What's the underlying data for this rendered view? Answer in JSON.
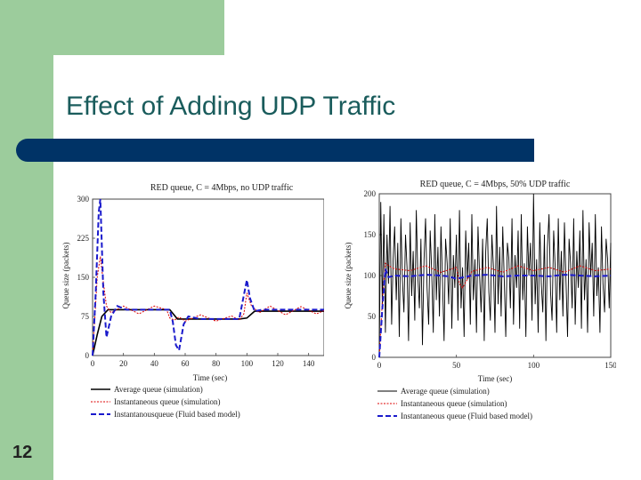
{
  "slide": {
    "title": "Effect of Adding UDP Traffic",
    "number": "12"
  },
  "colors": {
    "green": "#9ccc9c",
    "title_bar": "#003366",
    "title_text": "#1a5c5c",
    "average": "#000000",
    "instantaneous": "#dd0000",
    "fluid": "#1a1acc"
  },
  "chart_data": [
    {
      "type": "line",
      "title": "RED queue, C = 4Mbps, no UDP traffic",
      "xlabel": "Time (sec)",
      "ylabel": "Queue size (packets)",
      "xlim": [
        0,
        150
      ],
      "ylim": [
        0,
        300
      ],
      "xticks": [
        "0",
        "20",
        "40",
        "60",
        "80",
        "100",
        "120",
        "140"
      ],
      "yticks": [
        "0",
        "75",
        "150",
        "225",
        "300"
      ],
      "grid": false,
      "legend_position": "bottom",
      "series": [
        {
          "name": "Average queue (simulation)",
          "style": "solid",
          "x": [
            0,
            3,
            6,
            10,
            50,
            55,
            95,
            100,
            105,
            150
          ],
          "y": [
            0,
            40,
            75,
            88,
            88,
            70,
            70,
            72,
            85,
            85
          ]
        },
        {
          "name": "Instantaneous queue  (simulation)",
          "style": "dotted",
          "x": [
            0,
            3,
            5,
            7,
            9,
            12,
            20,
            30,
            40,
            48,
            50,
            53,
            56,
            60,
            70,
            80,
            90,
            95,
            98,
            100,
            103,
            108,
            115,
            125,
            135,
            145,
            150
          ],
          "y": [
            0,
            150,
            190,
            140,
            95,
            82,
            95,
            80,
            95,
            88,
            72,
            68,
            74,
            66,
            78,
            66,
            76,
            68,
            80,
            120,
            95,
            82,
            95,
            78,
            94,
            80,
            86
          ]
        },
        {
          "name": "Instantanousqueue (Fluid based model)",
          "style": "dashed",
          "x": [
            0,
            2,
            4,
            5,
            7,
            9,
            12,
            16,
            22,
            30,
            50,
            52,
            54,
            56,
            59,
            62,
            70,
            95,
            97,
            100,
            102,
            105,
            110,
            150
          ],
          "y": [
            0,
            120,
            275,
            300,
            120,
            35,
            75,
            95,
            88,
            88,
            88,
            65,
            20,
            10,
            60,
            75,
            70,
            70,
            100,
            145,
            110,
            85,
            88,
            88
          ]
        }
      ]
    },
    {
      "type": "line",
      "title": "RED queue, C = 4Mbps, 50% UDP traffic",
      "xlabel": "Time (sec)",
      "ylabel": "Queue size (packets)",
      "xlim": [
        0,
        150
      ],
      "ylim": [
        0,
        200
      ],
      "xticks": [
        "0",
        "50",
        "100",
        "150"
      ],
      "yticks": [
        "0",
        "50",
        "100",
        "150",
        "200"
      ],
      "grid": false,
      "legend_position": "bottom",
      "series": [
        {
          "name": "Average queue (simulation)",
          "style": "solid",
          "x": [
            0,
            1,
            2,
            3,
            4,
            5,
            6,
            7,
            8,
            9,
            10,
            11,
            12,
            13,
            14,
            15,
            16,
            17,
            18,
            19,
            20,
            21,
            22,
            23,
            24,
            25,
            26,
            27,
            28,
            29,
            30,
            31,
            32,
            33,
            34,
            35,
            36,
            37,
            38,
            39,
            40,
            41,
            42,
            43,
            44,
            45,
            46,
            47,
            48,
            49,
            50,
            51,
            52,
            53,
            54,
            55,
            56,
            57,
            58,
            59,
            60,
            61,
            62,
            63,
            64,
            65,
            66,
            67,
            68,
            69,
            70,
            71,
            72,
            73,
            74,
            75,
            76,
            77,
            78,
            79,
            80,
            81,
            82,
            83,
            84,
            85,
            86,
            87,
            88,
            89,
            90,
            91,
            92,
            93,
            94,
            95,
            96,
            97,
            98,
            99,
            100,
            101,
            102,
            103,
            104,
            105,
            106,
            107,
            108,
            109,
            110,
            111,
            112,
            113,
            114,
            115,
            116,
            117,
            118,
            119,
            120,
            121,
            122,
            123,
            124,
            125,
            126,
            127,
            128,
            129,
            130,
            131,
            132,
            133,
            134,
            135,
            136,
            137,
            138,
            139,
            140,
            141,
            142,
            143,
            144,
            145,
            146,
            147,
            148,
            149,
            150
          ],
          "y": [
            0,
            190,
            60,
            175,
            30,
            150,
            90,
            185,
            40,
            120,
            160,
            70,
            140,
            25,
            170,
            95,
            55,
            150,
            110,
            20,
            165,
            75,
            130,
            45,
            180,
            100,
            60,
            145,
            15,
            120,
            170,
            85,
            40,
            155,
            105,
            30,
            175,
            70,
            135,
            50,
            160,
            90,
            20,
            145,
            115,
            65,
            170,
            35,
            125,
            85,
            150,
            45,
            180,
            60,
            110,
            25,
            155,
            95,
            140,
            40,
            175,
            70,
            120,
            30,
            160,
            100,
            55,
            145,
            20,
            130,
            170,
            80,
            45,
            150,
            110,
            30,
            185,
            65,
            135,
            50,
            160,
            95,
            25,
            140,
            120,
            60,
            170,
            40,
            125,
            85,
            155,
            35,
            175,
            70,
            115,
            25,
            160,
            100,
            140,
            45,
            200,
            65,
            120,
            30,
            165,
            90,
            55,
            150,
            20,
            135,
            175,
            80,
            45,
            155,
            110,
            30,
            170,
            70,
            130,
            50,
            165,
            95,
            25,
            145,
            115,
            60,
            170,
            40,
            130,
            85,
            155,
            35,
            180,
            70,
            120,
            30,
            165,
            100,
            140,
            50,
            175,
            75,
            110,
            30,
            160,
            90,
            55,
            145,
            120,
            60,
            140
          ]
        },
        {
          "name": "Instantaneous queue  (simulation)",
          "style": "dotted",
          "x": [
            0,
            2,
            4,
            6,
            10,
            20,
            30,
            40,
            50,
            52,
            54,
            60,
            70,
            80,
            90,
            100,
            110,
            120,
            130,
            140,
            150
          ],
          "y": [
            0,
            70,
            115,
            112,
            108,
            106,
            112,
            104,
            110,
            90,
            85,
            105,
            110,
            104,
            112,
            106,
            110,
            104,
            112,
            106,
            108
          ]
        },
        {
          "name": "Instantaneous queue (Fluid based model)",
          "style": "dashed",
          "x": [
            0,
            2,
            4,
            6,
            10,
            20,
            30,
            40,
            45,
            50,
            55,
            60,
            70,
            80,
            90,
            100,
            110,
            120,
            130,
            140,
            150
          ],
          "y": [
            0,
            60,
            108,
            98,
            100,
            99,
            101,
            100,
            99,
            96,
            98,
            100,
            101,
            99,
            100,
            100,
            99,
            101,
            100,
            99,
            100
          ]
        }
      ]
    }
  ]
}
